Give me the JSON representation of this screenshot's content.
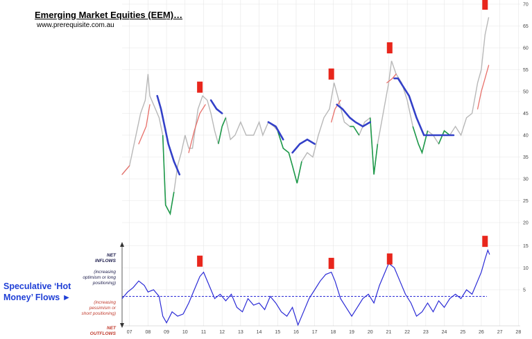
{
  "title": "Emerging Market Equities (EEM)…",
  "url": "www.prerequisite.com.au",
  "flows_label": "Speculative ‘Hot Money’ Flows ►",
  "side_notes": {
    "net_inflows": "NET INFLOWS",
    "increasing_optimism": "(increasing optimism or long positioning)",
    "increasing_pessimism": "(increasing pessimism or short positioning)",
    "net_outflows": "NET OUTFLOWS"
  },
  "colors": {
    "price": "#b8b8b8",
    "up_trend": "#e8706a",
    "down_trend": "#3340c8",
    "weakness": "#1e9a4a",
    "flow_line": "#2a2ad6",
    "zero_line": "#2a2ad6",
    "marker": "#e8261c",
    "flows_label": "#1f3fd6"
  },
  "chart_data": [
    {
      "type": "line",
      "title": "Emerging Market Equities (EEM)…",
      "x_ticks": [
        "07",
        "08",
        "09",
        "10",
        "11",
        "12",
        "13",
        "14",
        "15",
        "16",
        "17",
        "18",
        "19",
        "20",
        "21",
        "22",
        "23",
        "24",
        "25",
        "26",
        "27",
        "28"
      ],
      "x_range": [
        2006.6,
        2028.1
      ],
      "y_ticks": [
        20,
        25,
        30,
        35,
        40,
        45,
        50,
        55,
        60,
        65,
        70
      ],
      "ylim": [
        20,
        70
      ],
      "grid": true,
      "series": [
        {
          "role": "price",
          "x": [
            2006.6,
            2007.0,
            2007.3,
            2007.6,
            2007.85,
            2008.0,
            2008.1,
            2008.4,
            2008.6,
            2008.8,
            2008.95,
            2009.2,
            2009.4,
            2009.6,
            2009.8,
            2010.0,
            2010.2,
            2010.4,
            2010.7,
            2010.95,
            2011.2,
            2011.4,
            2011.6,
            2011.8,
            2012.0,
            2012.2,
            2012.45,
            2012.7,
            2013.0,
            2013.3,
            2013.45,
            2013.7,
            2014.0,
            2014.2,
            2014.5,
            2014.8,
            2015.0,
            2015.3,
            2015.6,
            2015.8,
            2016.05,
            2016.3,
            2016.6,
            2016.9,
            2017.2,
            2017.5,
            2017.8,
            2018.05,
            2018.3,
            2018.6,
            2018.9,
            2019.1,
            2019.4,
            2019.7,
            2020.0,
            2020.2,
            2020.4,
            2020.7,
            2021.0,
            2021.15,
            2021.4,
            2021.7,
            2022.0,
            2022.3,
            2022.6,
            2022.8,
            2023.1,
            2023.4,
            2023.7,
            2024.0,
            2024.3,
            2024.6,
            2024.9,
            2025.2,
            2025.5,
            2025.8,
            2026.0,
            2026.2,
            2026.4
          ],
          "y": [
            31,
            33,
            39,
            45,
            48,
            54,
            49,
            46,
            44,
            40,
            24,
            22,
            27,
            33,
            36,
            40,
            37,
            37,
            46,
            49,
            48,
            45,
            41,
            38,
            42,
            44,
            39,
            40,
            43,
            40,
            40,
            40,
            43,
            40,
            43,
            42,
            41,
            37,
            36,
            33,
            29,
            34,
            36,
            35,
            40,
            44,
            46,
            52,
            48,
            43,
            42,
            42,
            40,
            43,
            44,
            31,
            38,
            45,
            52,
            57,
            54,
            52,
            48,
            42,
            38,
            36,
            41,
            40,
            38,
            41,
            40,
            42,
            40,
            44,
            45,
            52,
            55,
            63,
            67
          ]
        },
        {
          "role": "uptrend",
          "x": [
            2006.6,
            2007.0,
            2007.5,
            2007.9,
            2008.1,
            2010.2,
            2010.5,
            2010.8,
            2011.1,
            2017.9,
            2018.1,
            2018.4,
            2020.9,
            2021.2,
            2021.4,
            2025.8,
            2026.0,
            2026.2,
            2026.4
          ],
          "y": [
            31,
            33,
            38,
            42,
            47,
            36,
            41,
            45,
            47,
            43,
            46,
            48,
            52,
            53,
            54,
            46,
            50,
            53,
            56
          ]
        },
        {
          "role": "downtrend",
          "x": [
            2008.5,
            2008.7,
            2008.9,
            2009.1,
            2009.4,
            2009.7,
            2011.4,
            2011.7,
            2012.0,
            2012.5,
            2013.0,
            2013.5,
            2014.0,
            2014.5,
            2014.9,
            2015.3,
            2015.8,
            2016.0,
            2016.2,
            2016.6,
            2017.0,
            2018.2,
            2018.5,
            2018.9,
            2019.2,
            2019.6,
            2020.0,
            2021.3,
            2021.5,
            2021.8,
            2022.1,
            2022.5,
            2022.9,
            2023.2,
            2023.6,
            2024.0,
            2024.3,
            2024.5
          ],
          "y": [
            49,
            46,
            42,
            38,
            34,
            31,
            48,
            46,
            45,
            44,
            43,
            43,
            42,
            43,
            42,
            39,
            36,
            37,
            38,
            39,
            38,
            47,
            46,
            44,
            43,
            42,
            43,
            53,
            53,
            51,
            49,
            44,
            40,
            40,
            40,
            40,
            40,
            40
          ]
        }
      ]
    },
    {
      "type": "line",
      "title": "Speculative ‘Hot Money’ Flows",
      "x_ticks": [
        "07",
        "08",
        "09",
        "10",
        "11",
        "12",
        "13",
        "14",
        "15",
        "16",
        "17",
        "18",
        "19",
        "20",
        "21",
        "22",
        "23",
        "24",
        "25",
        "26",
        "27",
        "28"
      ],
      "y_ticks": [
        5,
        10,
        15
      ],
      "ylim": [
        -4.5,
        16
      ],
      "reference_line": 3.5,
      "grid": true,
      "series": [
        {
          "role": "flows",
          "x": [
            2006.6,
            2006.9,
            2007.2,
            2007.5,
            2007.8,
            2008.0,
            2008.3,
            2008.6,
            2008.8,
            2009.0,
            2009.3,
            2009.6,
            2009.9,
            2010.2,
            2010.5,
            2010.8,
            2011.0,
            2011.3,
            2011.6,
            2011.9,
            2012.2,
            2012.5,
            2012.8,
            2013.1,
            2013.4,
            2013.7,
            2014.0,
            2014.3,
            2014.6,
            2014.9,
            2015.2,
            2015.5,
            2015.8,
            2016.1,
            2016.4,
            2016.7,
            2017.0,
            2017.3,
            2017.6,
            2017.9,
            2018.1,
            2018.4,
            2018.7,
            2019.0,
            2019.3,
            2019.6,
            2019.9,
            2020.2,
            2020.5,
            2020.8,
            2021.0,
            2021.3,
            2021.6,
            2021.9,
            2022.2,
            2022.5,
            2022.8,
            2023.1,
            2023.4,
            2023.7,
            2024.0,
            2024.3,
            2024.6,
            2024.9,
            2025.2,
            2025.5,
            2025.8,
            2026.0,
            2026.2,
            2026.35,
            2026.45
          ],
          "y": [
            3,
            4.5,
            5.5,
            7,
            6,
            4.5,
            5,
            3.5,
            -1,
            -2.5,
            0,
            -1,
            -0.5,
            2,
            5,
            8,
            9,
            6,
            3,
            4,
            2.5,
            4,
            1,
            0,
            3,
            1.5,
            2,
            0.5,
            3.5,
            2,
            0,
            -1,
            1,
            -3,
            0,
            3,
            5,
            7,
            8.5,
            9,
            7,
            3,
            1,
            -1,
            1,
            3,
            4,
            2,
            6,
            9,
            11,
            10,
            7,
            4,
            2,
            -1,
            0,
            2,
            0,
            2.5,
            1,
            3,
            4,
            3,
            5,
            4,
            7,
            9,
            12,
            14,
            13
          ]
        }
      ]
    }
  ],
  "markers": [
    {
      "chart": "price",
      "date": 2010.8,
      "value": 51
    },
    {
      "chart": "price",
      "date": 2017.9,
      "value": 54
    },
    {
      "chart": "price",
      "date": 2021.05,
      "value": 60
    },
    {
      "chart": "price",
      "date": 2026.2,
      "value": 70
    },
    {
      "chart": "flows",
      "date": 2010.8,
      "value": 11.5
    },
    {
      "chart": "flows",
      "date": 2017.9,
      "value": 11
    },
    {
      "chart": "flows",
      "date": 2021.05,
      "value": 12
    },
    {
      "chart": "flows",
      "date": 2026.2,
      "value": 16
    }
  ]
}
